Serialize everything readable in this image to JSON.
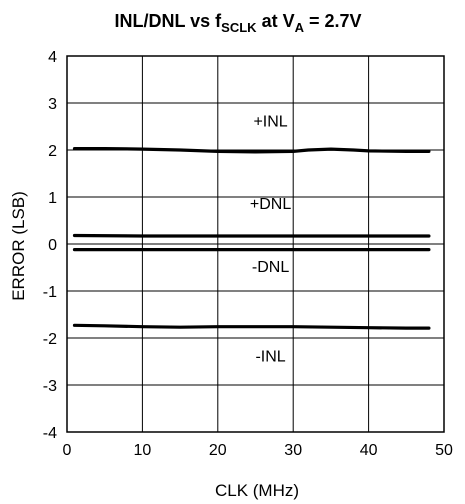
{
  "chart_data": {
    "type": "line",
    "title": {
      "part1": "INL/DNL vs f",
      "sub1": "SCLK",
      "part2": " at V",
      "sub2": "A",
      "part3": " = 2.7V"
    },
    "xlabel": "CLK (MHz)",
    "ylabel": "ERROR (LSB)",
    "xlim": [
      0,
      50
    ],
    "ylim": [
      -4,
      4
    ],
    "xticks": [
      0,
      10,
      20,
      30,
      40,
      50
    ],
    "yticks": [
      -4,
      -3,
      -2,
      -1,
      0,
      1,
      2,
      3,
      4
    ],
    "grid": true,
    "legend": "none",
    "series": [
      {
        "name": "+INL",
        "x": [
          1,
          5,
          10,
          15,
          20,
          25,
          30,
          32,
          35,
          38,
          40,
          45,
          48
        ],
        "y": [
          2.03,
          2.03,
          2.02,
          2.0,
          1.97,
          1.96,
          1.97,
          2.0,
          2.02,
          2.0,
          1.98,
          1.97,
          1.97
        ]
      },
      {
        "name": "+DNL",
        "x": [
          1,
          10,
          20,
          30,
          40,
          48
        ],
        "y": [
          0.18,
          0.17,
          0.17,
          0.17,
          0.17,
          0.17
        ]
      },
      {
        "name": "-DNL",
        "x": [
          1,
          10,
          20,
          30,
          40,
          48
        ],
        "y": [
          -0.12,
          -0.12,
          -0.12,
          -0.12,
          -0.12,
          -0.12
        ]
      },
      {
        "name": "-INL",
        "x": [
          1,
          5,
          10,
          15,
          20,
          25,
          30,
          35,
          40,
          45,
          48
        ],
        "y": [
          -1.73,
          -1.74,
          -1.76,
          -1.77,
          -1.76,
          -1.76,
          -1.76,
          -1.77,
          -1.78,
          -1.79,
          -1.79
        ]
      }
    ],
    "annotations": [
      {
        "text": "+INL",
        "x": 27,
        "y": 2.5
      },
      {
        "text": "+DNL",
        "x": 27,
        "y": 0.75
      },
      {
        "text": "-DNL",
        "x": 27,
        "y": -0.6
      },
      {
        "text": "-INL",
        "x": 27,
        "y": -2.5
      }
    ],
    "colors": {
      "line": "#000000",
      "grid": "#000000",
      "background": "#ffffff"
    }
  }
}
